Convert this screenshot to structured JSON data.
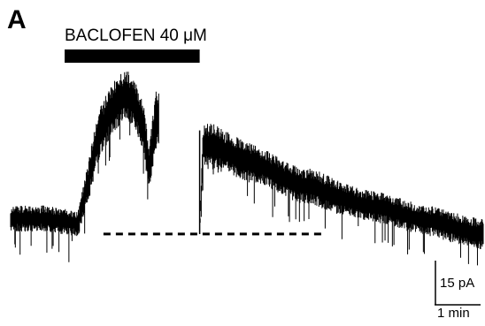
{
  "panel_label": "A",
  "drug_label_prefix": "BACLOFEN 40 ",
  "drug_label_unit": "μM",
  "scale_bar": {
    "y_label": "15 pA",
    "x_label": "1 min"
  },
  "chart_data": {
    "type": "line",
    "title": "",
    "xlabel": "",
    "ylabel": "",
    "x_unit": "min",
    "y_unit": "pA",
    "xlim": [
      0,
      14
    ],
    "ylim": [
      -14,
      76
    ],
    "baseline_pA": 0,
    "drug_application": {
      "label": "BACLOFEN 40 μM",
      "start_min": 1.6,
      "end_min": 5.6
    },
    "series": [
      {
        "gaps_min": [
          [
            4.4,
            5.6
          ]
        ],
        "x": [
          0.0,
          0.5,
          1.0,
          1.5,
          2.0,
          2.3,
          2.6,
          3.0,
          3.4,
          3.7,
          3.95,
          4.1,
          4.3,
          4.4,
          5.6,
          5.7,
          6.0,
          6.5,
          7.0,
          7.5,
          8.0,
          8.5,
          9.0,
          9.5,
          10.0,
          10.5,
          11.0,
          11.5,
          12.0,
          12.5,
          13.0,
          13.5,
          14.0
        ],
        "center": [
          6,
          6,
          6,
          5,
          4,
          20,
          38,
          48,
          54,
          50,
          40,
          24,
          44,
          44,
          0,
          34,
          34,
          31,
          28,
          26,
          22,
          19,
          18,
          15,
          13,
          11,
          10,
          8,
          6,
          5,
          3,
          1,
          0
        ],
        "noise_halfwidth": [
          5,
          5,
          5,
          5,
          5,
          8,
          10,
          10,
          10,
          10,
          10,
          9,
          11,
          11,
          0,
          9,
          9,
          8,
          8,
          7,
          7,
          7,
          7,
          7,
          6,
          6,
          6,
          6,
          6,
          6,
          6,
          6,
          6
        ]
      }
    ]
  }
}
